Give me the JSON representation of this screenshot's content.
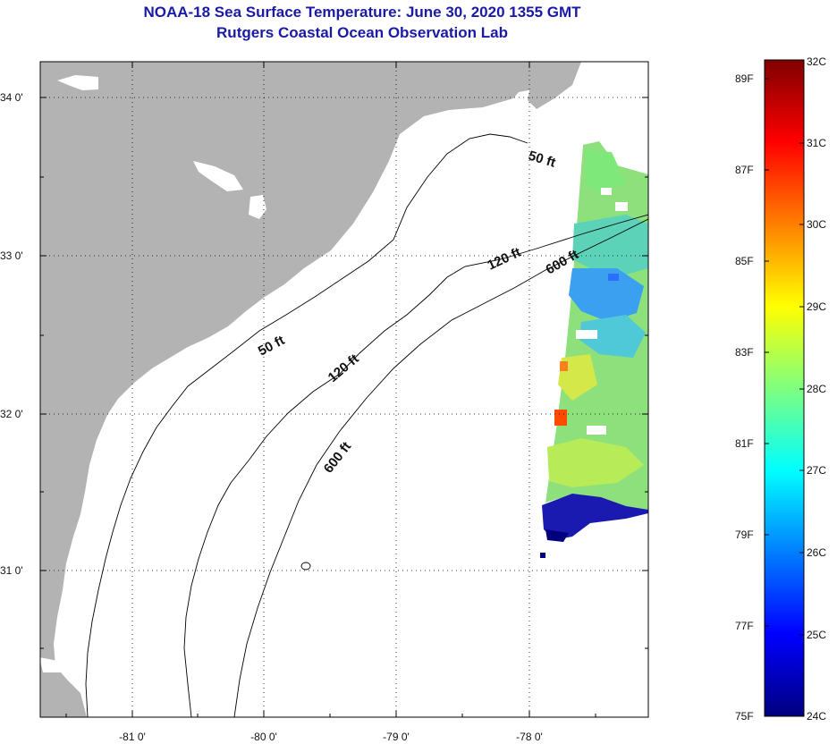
{
  "header": {
    "title": "NOAA-18 Sea Surface Temperature:  June 30, 2020 1355 GMT",
    "subtitle": "Rutgers Coastal Ocean Observation Lab"
  },
  "map": {
    "lat_labels": [
      "34 0'",
      "33 0'",
      "32 0'",
      "31 0'"
    ],
    "lon_labels": [
      "-81 0'",
      "-80 0'",
      "-79 0'",
      "-78 0'"
    ],
    "contour_labels": [
      "50 ft",
      "120 ft",
      "600 ft",
      "50 ft",
      "120 ft",
      "600 ft"
    ],
    "land_color": "#b3b3b3",
    "water_color": "#ffffff"
  },
  "colorbar": {
    "fahrenheit_labels": [
      "89F",
      "87F",
      "85F",
      "83F",
      "81F",
      "79F",
      "77F",
      "75F"
    ],
    "celsius_labels": [
      "32C",
      "31C",
      "30C",
      "29C",
      "28C",
      "27C",
      "26C",
      "25C",
      "24C"
    ],
    "colors": [
      "#00007f",
      "#0000ff",
      "#007fff",
      "#00ffff",
      "#7fff7f",
      "#ffff00",
      "#ff7f00",
      "#ff0000",
      "#7f0000"
    ]
  }
}
